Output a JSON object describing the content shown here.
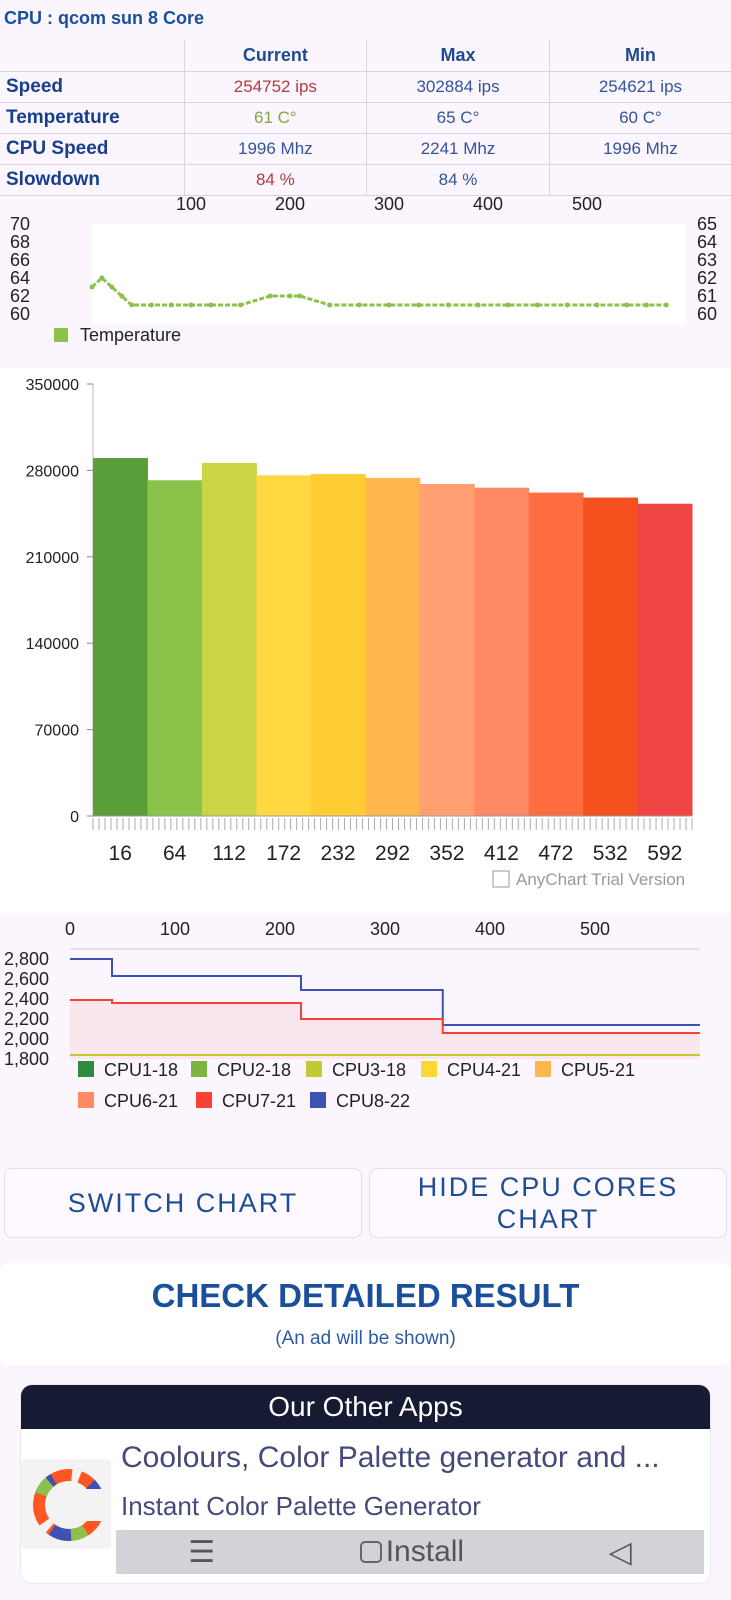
{
  "header": {
    "title": "CPU : qcom sun 8 Core"
  },
  "stats": {
    "columns": [
      "Current",
      "Max",
      "Min"
    ],
    "rows": [
      {
        "label": "Speed",
        "current": "254752 ips",
        "max": "302884 ips",
        "min": "254621 ips"
      },
      {
        "label": "Temperature",
        "current": "61 C°",
        "max": "65 C°",
        "min": "60 C°"
      },
      {
        "label": "CPU Speed",
        "current": "1996 Mhz",
        "max": "2241 Mhz",
        "min": "1996 Mhz"
      },
      {
        "label": "Slowdown",
        "current": "84 %",
        "max": "84 %",
        "min": ""
      }
    ]
  },
  "temp_chart": {
    "x_ticks": [
      "100",
      "200",
      "300",
      "400",
      "500"
    ],
    "y_left": [
      "70",
      "68",
      "66",
      "64",
      "62",
      "60"
    ],
    "y_right": [
      "65",
      "64",
      "63",
      "62",
      "61",
      "60"
    ],
    "legend": "Temperature",
    "color": "#8bc34a"
  },
  "bar_chart": {
    "y_ticks": [
      "350000",
      "280000",
      "210000",
      "140000",
      "70000",
      "0"
    ],
    "x_ticks": [
      "16",
      "64",
      "112",
      "172",
      "232",
      "292",
      "352",
      "412",
      "472",
      "532",
      "592"
    ],
    "watermark": "AnyChart Trial Version"
  },
  "cpu_chart": {
    "x_ticks": [
      "0",
      "100",
      "200",
      "300",
      "400",
      "500"
    ],
    "y_ticks": [
      "2,800",
      "2,600",
      "2,400",
      "2,200",
      "2,000",
      "1,800"
    ],
    "legend": [
      {
        "label": "CPU1-18",
        "color": "#2e8b3e"
      },
      {
        "label": "CPU2-18",
        "color": "#7cb342"
      },
      {
        "label": "CPU3-18",
        "color": "#c0ca33"
      },
      {
        "label": "CPU4-21",
        "color": "#fdd835"
      },
      {
        "label": "CPU5-21",
        "color": "#ffb74d"
      },
      {
        "label": "CPU6-21",
        "color": "#ff8a65"
      },
      {
        "label": "CPU7-21",
        "color": "#f44336"
      },
      {
        "label": "CPU8-22",
        "color": "#3f51b5"
      }
    ]
  },
  "buttons": {
    "switch": "SWITCH CHART",
    "hide_line1": "HIDE CPU CORES",
    "hide_line2": "CHART"
  },
  "check": {
    "title": "CHECK DETAILED RESULT",
    "subtitle": "(An ad will be shown)"
  },
  "apps": {
    "header": "Our Other Apps",
    "name": "Coolours, Color Palette generator and ...",
    "sub": "Instant Color Palette Generator",
    "install": "Install"
  },
  "chart_data": [
    {
      "type": "line",
      "title": "",
      "legend": [
        "Temperature"
      ],
      "x": [
        0,
        10,
        20,
        30,
        40,
        60,
        80,
        100,
        120,
        150,
        180,
        200,
        210,
        240,
        270,
        300,
        330,
        360,
        390,
        420,
        450,
        480,
        510,
        540,
        560,
        580
      ],
      "values": [
        63,
        64,
        63,
        62,
        61,
        61,
        61,
        61,
        61,
        61,
        62,
        62,
        62,
        61,
        61,
        61,
        61,
        61,
        61,
        61,
        61,
        61,
        61,
        61,
        61,
        61
      ],
      "ylim": [
        60,
        70
      ]
    },
    {
      "type": "bar",
      "title": "",
      "categories": [
        "16",
        "64",
        "112",
        "172",
        "232",
        "292",
        "352",
        "412",
        "472",
        "532",
        "592"
      ],
      "values": [
        290000,
        272000,
        286000,
        276000,
        277000,
        274000,
        269000,
        266000,
        262000,
        258000,
        253000
      ],
      "ylim": [
        0,
        350000
      ]
    },
    {
      "type": "line",
      "title": "",
      "x": [
        0,
        40,
        60,
        220,
        355,
        600
      ],
      "series": [
        {
          "name": "CPU8-22",
          "values": [
            2800,
            2630,
            2630,
            2490,
            2140,
            2140
          ]
        },
        {
          "name": "CPU7-21",
          "values": [
            2390,
            2360,
            2360,
            2200,
            2060,
            2060
          ]
        },
        {
          "name": "CPU3-18",
          "values": [
            1840,
            1840,
            1840,
            1840,
            1840,
            1840
          ]
        }
      ],
      "ylim": [
        1800,
        2900
      ]
    }
  ]
}
